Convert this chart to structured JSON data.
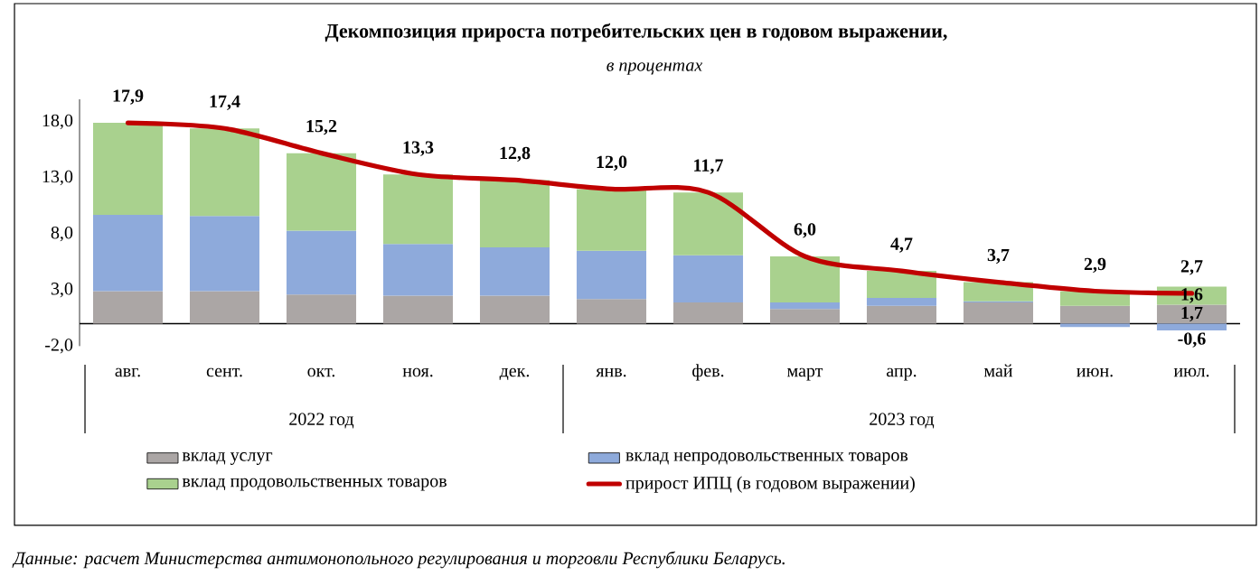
{
  "chart_data": {
    "type": "bar",
    "stacked": true,
    "title": "Декомпозиция прироста потребительских цен в годовом выражении,",
    "subtitle": "в процентах",
    "categories": [
      "авг.",
      "сент.",
      "окт.",
      "ноя.",
      "дек.",
      "янв.",
      "фев.",
      "март",
      "апр.",
      "май",
      "июн.",
      "июл."
    ],
    "series": [
      {
        "name": "вклад услуг",
        "color": "#aba6a5",
        "values": [
          2.9,
          2.9,
          2.6,
          2.5,
          2.5,
          2.2,
          1.9,
          1.3,
          1.6,
          1.9,
          1.6,
          1.7
        ],
        "value_labels": [
          null,
          null,
          null,
          null,
          null,
          null,
          null,
          null,
          null,
          null,
          null,
          "1,7"
        ]
      },
      {
        "name": "вклад непродовольственных товаров",
        "color": "#8eaadb",
        "values": [
          6.8,
          6.7,
          5.7,
          4.6,
          4.3,
          4.3,
          4.2,
          0.6,
          0.7,
          0.1,
          -0.3,
          -0.6
        ],
        "value_labels": [
          null,
          null,
          null,
          null,
          null,
          null,
          null,
          null,
          null,
          null,
          null,
          "-0,6"
        ]
      },
      {
        "name": "вклад продовольственных товаров",
        "color": "#a9d18e",
        "values": [
          8.2,
          7.8,
          6.9,
          6.2,
          6.0,
          5.5,
          5.6,
          4.1,
          2.4,
          1.7,
          1.3,
          1.6
        ],
        "value_labels": [
          null,
          null,
          null,
          null,
          null,
          null,
          null,
          null,
          null,
          null,
          null,
          "1,6"
        ]
      },
      {
        "name": "прирост ИПЦ (в годовом выражении)",
        "type": "line",
        "color": "#c00000",
        "values": [
          17.9,
          17.4,
          15.2,
          13.3,
          12.8,
          12.0,
          11.7,
          6.0,
          4.7,
          3.7,
          2.9,
          2.7
        ],
        "value_labels": [
          "17,9",
          "17,4",
          "15,2",
          "13,3",
          "12,8",
          "12,0",
          "11,7",
          "6,0",
          "4,7",
          "3,7",
          "2,9",
          "2,7"
        ]
      }
    ],
    "ylim": [
      -2,
      20
    ],
    "yticks": [
      {
        "value": -2,
        "label": "-2,0"
      },
      {
        "value": 3,
        "label": "3,0"
      },
      {
        "value": 8,
        "label": "8,0"
      },
      {
        "value": 13,
        "label": "13,0"
      },
      {
        "value": 18,
        "label": "18,0"
      }
    ],
    "legend": "bottom",
    "annotations": [
      "2022 год",
      "2023 год",
      "Данные: расчет Министерства антимонопольного регулирования и торговли Республики Беларусь."
    ]
  }
}
